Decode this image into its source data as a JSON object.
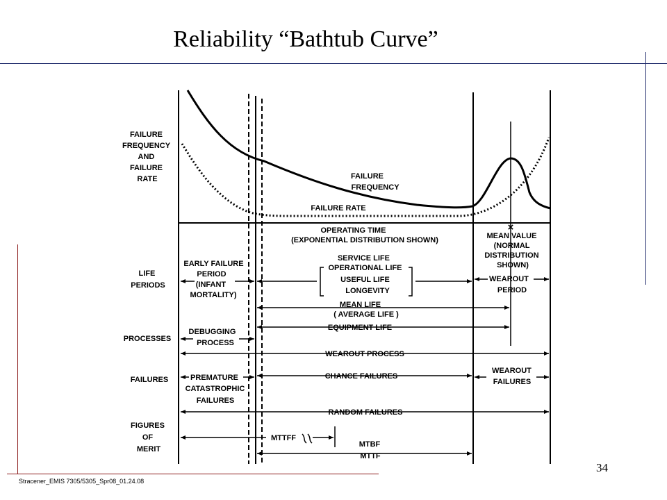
{
  "slide": {
    "title": "Reliability “Bathtub Curve”",
    "footer": "Stracener_EMIS 7305/5305_Spr08_01.24.08",
    "page_number": "34"
  },
  "left_labels": {
    "failure_block": [
      "FAILURE",
      "FREQUENCY",
      "AND",
      "FAILURE",
      "RATE"
    ],
    "life_periods": [
      "LIFE",
      "PERIODS"
    ],
    "processes": "PROCESSES",
    "failures": "FAILURES",
    "figures_of_merit": [
      "FIGURES",
      "OF",
      "MERIT"
    ]
  },
  "curve_labels": {
    "failure_frequency": [
      "FAILURE",
      "FREQUENCY"
    ],
    "failure_rate": "FAILURE RATE",
    "operating_time": [
      "OPERATING TIME",
      "(EXPONENTIAL DISTRIBUTION SHOWN)"
    ],
    "mean_value": [
      "MEAN VALUE",
      "(NORMAL",
      "DISTRIBUTION",
      "SHOWN)"
    ],
    "mean_marker": "×"
  },
  "periods": {
    "early_failure": [
      "EARLY FAILURE",
      "PERIOD",
      "(INFANT",
      "MORTALITY)"
    ],
    "service_life": [
      "SERVICE LIFE",
      "OPERATIONAL LIFE",
      "USEFUL LIFE",
      "LONGEVITY"
    ],
    "wearout_period": [
      "WEAROUT",
      "PERIOD"
    ],
    "mean_life": [
      "MEAN LIFE",
      "( AVERAGE LIFE )"
    ],
    "equipment_life": "EQUIPMENT LIFE"
  },
  "processes": {
    "debugging": [
      "DEBUGGING",
      "PROCESS"
    ],
    "wearout_process": "WEAROUT PROCESS"
  },
  "failures": {
    "premature": [
      "PREMATURE",
      "CATASTROPHIC",
      "FAILURES"
    ],
    "chance": "CHANCE FAILURES",
    "wearout": [
      "WEAROUT",
      "FAILURES"
    ],
    "random": "RANDOM FAILURES"
  },
  "figures_of_merit": {
    "mttff": "MTTFF",
    "mtbf": "MTBF",
    "mttf": "MTTF"
  }
}
